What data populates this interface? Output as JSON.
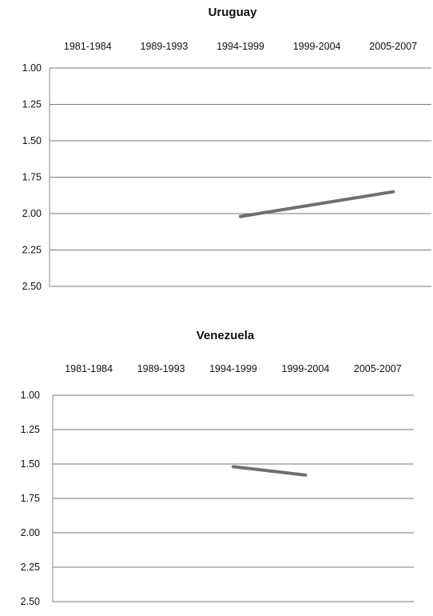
{
  "chart_data": [
    {
      "type": "line",
      "title": "Uruguay",
      "categories": [
        "1981-1984",
        "1989-1993",
        "1994-1999",
        "1999-2004",
        "2005-2007"
      ],
      "y_axis": {
        "min": 1.0,
        "max": 2.5,
        "inverted": true,
        "ticks": [
          "1.00",
          "1.25",
          "1.50",
          "1.75",
          "2.00",
          "2.25",
          "2.50"
        ],
        "tick_values": [
          1.0,
          1.25,
          1.5,
          1.75,
          2.0,
          2.25,
          2.5
        ]
      },
      "x_axis_position": "top",
      "grid": true,
      "legend": "none",
      "series": [
        {
          "values": [
            null,
            null,
            2.02,
            null,
            1.85
          ]
        }
      ],
      "color": "#6f6f6f"
    },
    {
      "type": "line",
      "title": "Venezuela",
      "categories": [
        "1981-1984",
        "1989-1993",
        "1994-1999",
        "1999-2004",
        "2005-2007"
      ],
      "y_axis": {
        "min": 1.0,
        "max": 2.5,
        "inverted": true,
        "ticks": [
          "1.00",
          "1.25",
          "1.50",
          "1.75",
          "2.00",
          "2.25",
          "2.50"
        ],
        "tick_values": [
          1.0,
          1.25,
          1.5,
          1.75,
          2.0,
          2.25,
          2.5
        ]
      },
      "x_axis_position": "top",
      "grid": true,
      "legend": "none",
      "series": [
        {
          "values": [
            null,
            null,
            1.52,
            1.58,
            null
          ]
        }
      ],
      "color": "#6f6f6f"
    }
  ]
}
